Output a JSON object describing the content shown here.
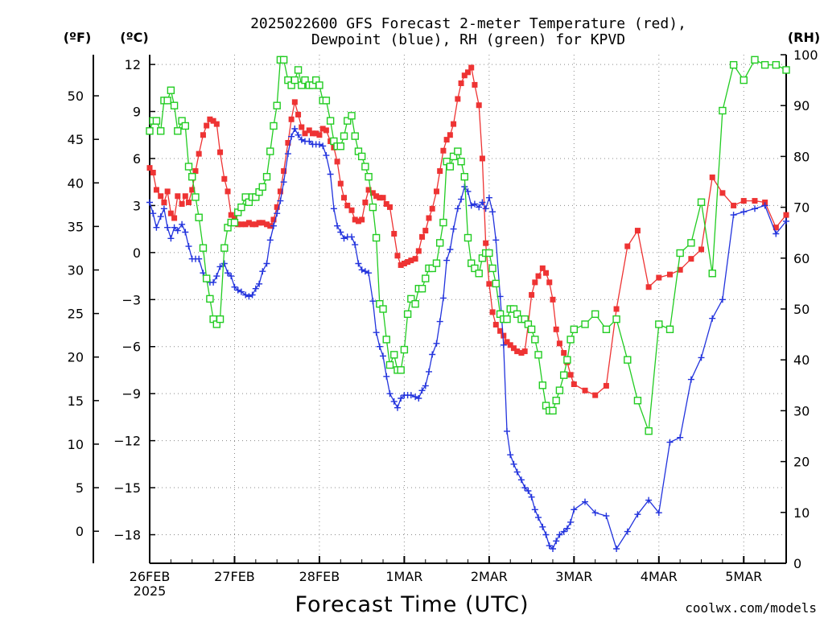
{
  "chart_data": {
    "type": "line",
    "title_line1": "2025022600 GFS Forecast 2-meter Temperature (red),",
    "title_line2": "Dewpoint (blue), RH (green) for KPVD",
    "left_outer_label": "(ºF)",
    "left_inner_label": "(ºC)",
    "right_label": "(RH)",
    "xlabel": "Forecast Time (UTC)",
    "credit": "coolwx.com/models",
    "x_unit": "days since 26FEB 00Z",
    "xlim": [
      0,
      7.5
    ],
    "x_ticks": [
      {
        "x": 0,
        "label": "26FEB",
        "sub": "2025"
      },
      {
        "x": 1,
        "label": "27FEB"
      },
      {
        "x": 2,
        "label": "28FEB"
      },
      {
        "x": 3,
        "label": "1MAR"
      },
      {
        "x": 4,
        "label": "2MAR"
      },
      {
        "x": 5,
        "label": "3MAR"
      },
      {
        "x": 6,
        "label": "4MAR"
      },
      {
        "x": 7,
        "label": "5MAR"
      }
    ],
    "y_celsius": {
      "lim": [
        -20,
        12.5
      ],
      "ticks": [
        12,
        9,
        6,
        3,
        0,
        -3,
        -6,
        -9,
        -12,
        -15,
        -18
      ],
      "labels": [
        "12",
        "9",
        "6",
        "3",
        "0",
        "−3",
        "−6",
        "−9",
        "−12",
        "−15",
        "−18"
      ]
    },
    "y_fahrenheit": {
      "ticks": [
        50,
        45,
        40,
        35,
        30,
        25,
        20,
        15,
        10,
        5,
        0
      ],
      "labels": [
        "50",
        "45",
        "40",
        "35",
        "30",
        "25",
        "20",
        "15",
        "10",
        "5",
        "0"
      ]
    },
    "y_rh": {
      "lim": [
        0,
        100
      ],
      "ticks": [
        100,
        90,
        80,
        70,
        60,
        50,
        40,
        30,
        20,
        10,
        0
      ],
      "labels": [
        "100",
        "90",
        "80",
        "70",
        "60",
        "50",
        "40",
        "30",
        "20",
        "10",
        "0"
      ]
    },
    "grid": "dotted",
    "colors": {
      "temperature": "#ee3333",
      "dewpoint": "#2233dd",
      "rh": "#22cc22",
      "credit": "#dd2222"
    },
    "series": [
      {
        "name": "Temperature",
        "axis": "celsius",
        "marker": "filled-square",
        "x": [
          0,
          0.04,
          0.08,
          0.13,
          0.17,
          0.21,
          0.25,
          0.29,
          0.33,
          0.38,
          0.42,
          0.46,
          0.5,
          0.54,
          0.58,
          0.63,
          0.67,
          0.71,
          0.75,
          0.79,
          0.83,
          0.88,
          0.92,
          0.96,
          1,
          1.04,
          1.08,
          1.13,
          1.17,
          1.21,
          1.25,
          1.29,
          1.33,
          1.38,
          1.42,
          1.46,
          1.5,
          1.54,
          1.58,
          1.63,
          1.67,
          1.71,
          1.75,
          1.79,
          1.83,
          1.88,
          1.92,
          1.96,
          2,
          2.04,
          2.08,
          2.13,
          2.17,
          2.21,
          2.25,
          2.29,
          2.33,
          2.38,
          2.42,
          2.46,
          2.5,
          2.54,
          2.58,
          2.63,
          2.67,
          2.71,
          2.75,
          2.79,
          2.83,
          2.88,
          2.92,
          2.96,
          3,
          3.04,
          3.08,
          3.13,
          3.17,
          3.21,
          3.25,
          3.29,
          3.33,
          3.38,
          3.42,
          3.46,
          3.5,
          3.54,
          3.58,
          3.63,
          3.67,
          3.71,
          3.75,
          3.79,
          3.83,
          3.88,
          3.92,
          3.96,
          4,
          4.04,
          4.08,
          4.13,
          4.17,
          4.21,
          4.25,
          4.29,
          4.33,
          4.38,
          4.42,
          4.46,
          4.5,
          4.54,
          4.58,
          4.63,
          4.67,
          4.71,
          4.75,
          4.79,
          4.83,
          4.88,
          4.92,
          4.96,
          5,
          5.13,
          5.25,
          5.38,
          5.5,
          5.63,
          5.75,
          5.88,
          6,
          6.13,
          6.25,
          6.38,
          6.5,
          6.63,
          6.75,
          6.88,
          7,
          7.13,
          7.25,
          7.38,
          7.5
        ],
        "y": [
          5.4,
          5.1,
          4.0,
          3.6,
          3.2,
          3.9,
          2.5,
          2.2,
          3.6,
          3.1,
          3.6,
          3.2,
          4.0,
          5.2,
          6.3,
          7.5,
          8.1,
          8.5,
          8.4,
          8.2,
          6.4,
          4.7,
          3.9,
          2.4,
          2.2,
          1.8,
          1.8,
          1.8,
          1.9,
          1.8,
          1.8,
          1.9,
          1.9,
          1.8,
          1.7,
          2.1,
          2.9,
          3.9,
          5.2,
          7.0,
          8.5,
          9.6,
          8.8,
          8.0,
          7.6,
          7.8,
          7.6,
          7.6,
          7.5,
          7.9,
          7.8,
          7.1,
          6.7,
          5.8,
          4.4,
          3.5,
          3.0,
          2.7,
          2.1,
          2.0,
          2.1,
          3.2,
          4.0,
          3.8,
          3.6,
          3.5,
          3.5,
          3.1,
          2.9,
          1.2,
          -0.2,
          -0.8,
          -0.7,
          -0.6,
          -0.5,
          -0.4,
          0.1,
          1.0,
          1.4,
          2.2,
          2.8,
          3.9,
          5.2,
          6.5,
          7.2,
          7.5,
          8.2,
          9.8,
          10.8,
          11.3,
          11.5,
          11.8,
          10.7,
          9.4,
          6.0,
          0.6,
          -2.0,
          -3.8,
          -4.6,
          -5.0,
          -5.3,
          -5.7,
          -5.9,
          -6.1,
          -6.3,
          -6.4,
          -6.3,
          -4.6,
          -2.7,
          -1.9,
          -1.5,
          -1.0,
          -1.3,
          -1.9,
          -3.0,
          -4.9,
          -5.8,
          -6.4,
          -7.0,
          -7.8,
          -8.4,
          -8.8,
          -9.1,
          -8.5,
          -3.6,
          0.4,
          1.4,
          -2.2,
          -1.6,
          -1.4,
          -1.1,
          -0.4,
          0.2,
          4.8,
          3.8,
          3.0,
          3.3,
          3.3,
          3.2,
          1.6,
          2.4
        ]
      },
      {
        "name": "Dewpoint",
        "axis": "celsius",
        "marker": "plus",
        "x": [
          0,
          0.04,
          0.08,
          0.13,
          0.17,
          0.21,
          0.25,
          0.29,
          0.33,
          0.38,
          0.42,
          0.46,
          0.5,
          0.54,
          0.58,
          0.63,
          0.67,
          0.71,
          0.75,
          0.79,
          0.83,
          0.88,
          0.92,
          0.96,
          1,
          1.04,
          1.08,
          1.13,
          1.17,
          1.21,
          1.25,
          1.29,
          1.33,
          1.38,
          1.42,
          1.46,
          1.5,
          1.54,
          1.58,
          1.63,
          1.67,
          1.71,
          1.75,
          1.79,
          1.83,
          1.88,
          1.92,
          1.96,
          2,
          2.04,
          2.08,
          2.13,
          2.17,
          2.21,
          2.25,
          2.29,
          2.33,
          2.38,
          2.42,
          2.46,
          2.5,
          2.54,
          2.58,
          2.63,
          2.67,
          2.71,
          2.75,
          2.79,
          2.83,
          2.88,
          2.92,
          2.96,
          3,
          3.04,
          3.08,
          3.13,
          3.17,
          3.21,
          3.25,
          3.29,
          3.33,
          3.38,
          3.42,
          3.46,
          3.5,
          3.54,
          3.58,
          3.63,
          3.67,
          3.71,
          3.75,
          3.79,
          3.83,
          3.88,
          3.92,
          3.96,
          4,
          4.04,
          4.08,
          4.13,
          4.17,
          4.21,
          4.25,
          4.29,
          4.33,
          4.38,
          4.42,
          4.46,
          4.5,
          4.54,
          4.58,
          4.63,
          4.67,
          4.71,
          4.75,
          4.79,
          4.83,
          4.88,
          4.92,
          4.96,
          5,
          5.13,
          5.25,
          5.38,
          5.5,
          5.63,
          5.75,
          5.88,
          6,
          6.13,
          6.25,
          6.38,
          6.5,
          6.63,
          6.75,
          6.88,
          7,
          7.13,
          7.25,
          7.38,
          7.5
        ],
        "y": [
          3.2,
          2.5,
          1.6,
          2.3,
          2.8,
          1.6,
          0.9,
          1.6,
          1.4,
          1.8,
          1.3,
          0.4,
          -0.4,
          -0.4,
          -0.4,
          -1.3,
          -1.7,
          -1.9,
          -1.9,
          -1.5,
          -0.9,
          -0.7,
          -1.3,
          -1.5,
          -2.2,
          -2.4,
          -2.5,
          -2.7,
          -2.8,
          -2.7,
          -2.3,
          -2.0,
          -1.2,
          -0.7,
          0.8,
          1.7,
          2.5,
          3.3,
          4.5,
          6.3,
          7.4,
          7.9,
          7.5,
          7.2,
          7.1,
          7.1,
          6.9,
          6.9,
          6.9,
          6.8,
          6.2,
          5.0,
          2.8,
          1.7,
          1.3,
          0.9,
          1.0,
          1.0,
          0.5,
          -0.7,
          -1.1,
          -1.2,
          -1.3,
          -3.1,
          -5.1,
          -6.0,
          -6.6,
          -7.9,
          -9.0,
          -9.5,
          -9.9,
          -9.3,
          -9.1,
          -9.1,
          -9.1,
          -9.2,
          -9.3,
          -8.8,
          -8.5,
          -7.6,
          -6.5,
          -5.8,
          -4.4,
          -2.9,
          -0.5,
          0.2,
          1.5,
          2.8,
          3.4,
          4.2,
          3.9,
          3.0,
          3.1,
          2.9,
          3.2,
          2.8,
          3.5,
          2.6,
          0.8,
          -2.8,
          -5.9,
          -11.4,
          -12.9,
          -13.5,
          -14.0,
          -14.5,
          -15.0,
          -15.2,
          -15.6,
          -16.4,
          -16.9,
          -17.5,
          -18.0,
          -18.7,
          -18.9,
          -18.4,
          -18.0,
          -17.8,
          -17.6,
          -17.2,
          -16.4,
          -15.9,
          -16.6,
          -16.8,
          -18.9,
          -17.8,
          -16.7,
          -15.8,
          -16.6,
          -12.1,
          -11.8,
          -8.1,
          -6.7,
          -4.2,
          -3.0,
          2.4,
          2.6,
          2.8,
          3.0,
          1.2,
          2.0
        ]
      },
      {
        "name": "RH",
        "axis": "rh",
        "marker": "open-square",
        "x": [
          0,
          0.04,
          0.08,
          0.13,
          0.17,
          0.21,
          0.25,
          0.29,
          0.33,
          0.38,
          0.42,
          0.46,
          0.5,
          0.54,
          0.58,
          0.63,
          0.67,
          0.71,
          0.75,
          0.79,
          0.83,
          0.88,
          0.92,
          0.96,
          1,
          1.04,
          1.08,
          1.13,
          1.17,
          1.21,
          1.25,
          1.29,
          1.33,
          1.38,
          1.42,
          1.46,
          1.5,
          1.54,
          1.58,
          1.63,
          1.67,
          1.71,
          1.75,
          1.79,
          1.83,
          1.88,
          1.92,
          1.96,
          2,
          2.04,
          2.08,
          2.13,
          2.17,
          2.21,
          2.25,
          2.29,
          2.33,
          2.38,
          2.42,
          2.46,
          2.5,
          2.54,
          2.58,
          2.63,
          2.67,
          2.71,
          2.75,
          2.79,
          2.83,
          2.88,
          2.92,
          2.96,
          3,
          3.04,
          3.08,
          3.13,
          3.17,
          3.21,
          3.25,
          3.29,
          3.33,
          3.38,
          3.42,
          3.46,
          3.5,
          3.54,
          3.58,
          3.63,
          3.67,
          3.71,
          3.75,
          3.79,
          3.83,
          3.88,
          3.92,
          3.96,
          4,
          4.04,
          4.08,
          4.13,
          4.17,
          4.21,
          4.25,
          4.29,
          4.33,
          4.38,
          4.42,
          4.46,
          4.5,
          4.54,
          4.58,
          4.63,
          4.67,
          4.71,
          4.75,
          4.79,
          4.83,
          4.88,
          4.92,
          4.96,
          5,
          5.13,
          5.25,
          5.38,
          5.5,
          5.63,
          5.75,
          5.88,
          6,
          6.13,
          6.25,
          6.38,
          6.5,
          6.63,
          6.75,
          6.88,
          7,
          7.13,
          7.25,
          7.38,
          7.5
        ],
        "y": [
          85,
          87,
          87,
          85,
          91,
          91,
          93,
          90,
          85,
          87,
          86,
          78,
          76,
          72,
          68,
          62,
          56,
          52,
          48,
          47,
          48,
          62,
          66,
          67,
          67,
          69,
          70,
          72,
          71,
          72,
          72,
          73,
          74,
          76,
          81,
          86,
          90,
          99,
          99,
          95,
          94,
          95,
          97,
          94,
          95,
          94,
          94,
          95,
          94,
          91,
          91,
          87,
          83,
          82,
          82,
          84,
          87,
          88,
          84,
          81,
          80,
          78,
          76,
          70,
          64,
          51,
          50,
          44,
          39,
          41,
          38,
          38,
          42,
          49,
          52,
          51,
          54,
          54,
          56,
          58,
          58,
          59,
          63,
          67,
          79,
          78,
          80,
          81,
          79,
          76,
          64,
          59,
          58,
          57,
          60,
          61,
          61,
          58,
          55,
          49,
          48,
          48,
          50,
          50,
          49,
          48,
          48,
          47,
          46,
          44,
          41,
          35,
          31,
          30,
          30,
          32,
          34,
          37,
          40,
          44,
          46,
          47,
          49,
          46,
          48,
          40,
          32,
          26,
          47,
          46,
          61,
          63,
          71,
          57,
          89,
          98,
          95,
          99,
          98,
          98,
          97
        ]
      }
    ]
  }
}
